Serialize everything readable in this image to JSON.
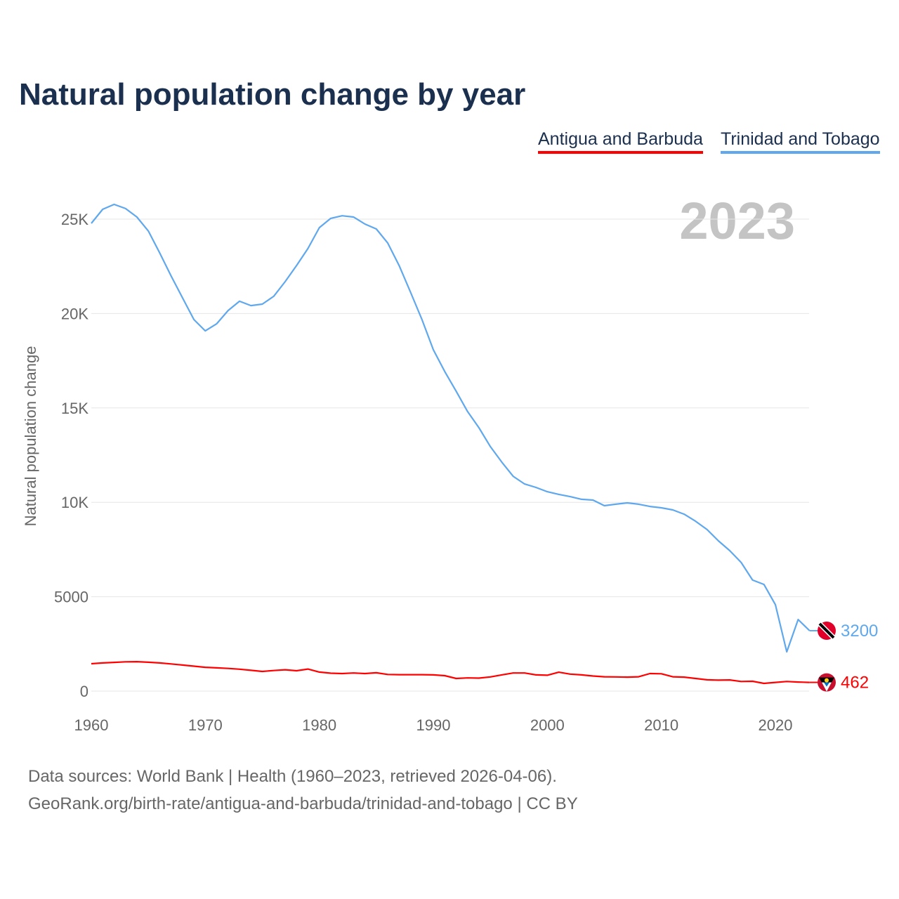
{
  "title": "Natural population change by year",
  "year_label": "2023",
  "source_lines": [
    "Data sources: World Bank | Health (1960–2023, retrieved 2026-04-06).",
    "GeoRank.org/birth-rate/antigua-and-barbuda/trinidad-and-tobago | CC BY"
  ],
  "chart_data": {
    "type": "line",
    "title": "Natural population change by year",
    "xlabel": "",
    "ylabel": "Natural population change",
    "xlim": [
      1960,
      2023
    ],
    "ylim": [
      0,
      26500
    ],
    "x_ticks": [
      "1960",
      "1970",
      "1980",
      "1990",
      "2000",
      "2010",
      "2020"
    ],
    "y_ticks": [
      "0",
      "5000",
      "10K",
      "15K",
      "20K",
      "25K"
    ],
    "grid": true,
    "legend_position": "top-right",
    "x": [
      1960,
      1961,
      1962,
      1963,
      1964,
      1965,
      1966,
      1967,
      1968,
      1969,
      1970,
      1971,
      1972,
      1973,
      1974,
      1975,
      1976,
      1977,
      1978,
      1979,
      1980,
      1981,
      1982,
      1983,
      1984,
      1985,
      1986,
      1987,
      1988,
      1989,
      1990,
      1991,
      1992,
      1993,
      1994,
      1995,
      1996,
      1997,
      1998,
      1999,
      2000,
      2001,
      2002,
      2003,
      2004,
      2005,
      2006,
      2007,
      2008,
      2009,
      2010,
      2011,
      2012,
      2013,
      2014,
      2015,
      2016,
      2017,
      2018,
      2019,
      2020,
      2021,
      2022,
      2023
    ],
    "series": [
      {
        "name": "Antigua and Barbuda",
        "color": "#ff0000",
        "end_label": "462",
        "values": [
          1450,
          1490,
          1520,
          1550,
          1560,
          1530,
          1490,
          1440,
          1380,
          1320,
          1260,
          1230,
          1200,
          1160,
          1100,
          1040,
          1090,
          1130,
          1080,
          1170,
          1010,
          950,
          930,
          960,
          930,
          970,
          880,
          870,
          870,
          870,
          860,
          820,
          670,
          700,
          690,
          750,
          860,
          960,
          960,
          860,
          840,
          1000,
          900,
          860,
          800,
          760,
          750,
          740,
          760,
          930,
          920,
          760,
          740,
          670,
          600,
          580,
          590,
          510,
          520,
          410,
          460,
          510,
          480,
          462
        ]
      },
      {
        "name": "Trinidad and Tobago",
        "color": "#5fa8ee",
        "end_label": "3200",
        "values": [
          24775,
          25520,
          25780,
          25560,
          25110,
          24370,
          23210,
          21990,
          20830,
          19680,
          19080,
          19460,
          20160,
          20650,
          20420,
          20500,
          20910,
          21690,
          22540,
          23440,
          24550,
          25040,
          25180,
          25110,
          24740,
          24480,
          23730,
          22540,
          21130,
          19680,
          18080,
          16930,
          15880,
          14810,
          13950,
          12950,
          12130,
          11380,
          10970,
          10790,
          10560,
          10420,
          10300,
          10160,
          10120,
          9820,
          9900,
          9970,
          9900,
          9780,
          9710,
          9600,
          9370,
          9000,
          8560,
          7960,
          7440,
          6810,
          5880,
          5650,
          4580,
          2080,
          3790,
          3200
        ]
      }
    ]
  }
}
